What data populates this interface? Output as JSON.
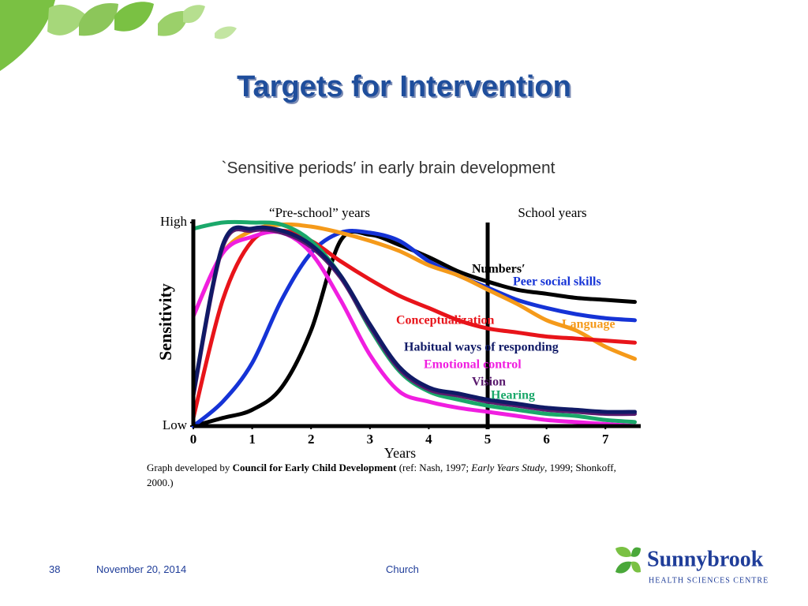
{
  "slide": {
    "title": "Targets for Intervention",
    "page_number": "38",
    "date": "November 20, 2014",
    "footer": "Church",
    "logo_name": "Sunnybrook",
    "logo_subtitle": "HEALTH SCIENCES CENTRE"
  },
  "chart_data": {
    "type": "line",
    "title": "`Sensitive periods′ in early brain development",
    "xlabel": "Years",
    "ylabel": "Sensitivity",
    "annotations": [
      "“Pre-school” years",
      "School years"
    ],
    "caption": [
      "Graph developed by ",
      "Council for Early Child Development",
      " (ref: Nash, 1997; ",
      "Early Years Study",
      ", 1999; Shonkoff, 2000.)"
    ],
    "x": [
      0,
      0.5,
      1,
      1.5,
      2,
      2.5,
      3,
      3.5,
      4,
      4.5,
      5,
      5.5,
      6,
      6.5,
      7,
      7.5
    ],
    "xlim": [
      0,
      7.6
    ],
    "xticks": [
      0,
      1,
      2,
      3,
      4,
      5,
      6,
      7
    ],
    "ylim": [
      0,
      100
    ],
    "yticks": [
      {
        "value": 0,
        "label": "Low"
      },
      {
        "value": 100,
        "label": "High"
      }
    ],
    "grid": false,
    "series": [
      {
        "name": "Numbers′",
        "color": "#000000",
        "values": [
          0,
          4,
          8,
          19,
          47,
          91,
          94,
          89,
          83,
          76,
          71,
          67,
          65,
          63,
          62,
          61
        ]
      },
      {
        "name": "Peer social skills",
        "color": "#1533d6",
        "values": [
          0,
          12,
          31,
          62,
          85,
          95,
          95,
          91,
          81,
          74,
          68,
          62,
          58,
          55,
          53,
          52
        ]
      },
      {
        "name": "Language",
        "color": "#f59a1a",
        "values": [
          54,
          85,
          96,
          99,
          98,
          95,
          91,
          86,
          79,
          74,
          67,
          60,
          52,
          47,
          39,
          33
        ]
      },
      {
        "name": "Conceptualization",
        "color": "#e8141a",
        "values": [
          4,
          62,
          91,
          96,
          91,
          81,
          72,
          64,
          58,
          52,
          48,
          46,
          44,
          43,
          42,
          41
        ]
      },
      {
        "name": "Hearing",
        "color": "#1aa86a",
        "values": [
          97,
          100,
          100,
          99,
          91,
          74,
          48,
          27,
          17,
          13,
          10,
          8,
          6,
          5,
          3,
          2
        ]
      },
      {
        "name": "Emotional control",
        "color": "#f01ee0",
        "values": [
          54,
          85,
          93,
          95,
          85,
          62,
          35,
          17,
          12,
          9,
          7,
          5,
          3,
          2,
          1,
          0
        ]
      },
      {
        "name": "Vision",
        "color": "#5a1a6e",
        "values": [
          15,
          88,
          96,
          95,
          88,
          73,
          49,
          28,
          18,
          15,
          12,
          10,
          8,
          7,
          6,
          6
        ]
      },
      {
        "name": "Habitual ways of responding",
        "color": "#101a66",
        "values": [
          16,
          89,
          97,
          96,
          89,
          74,
          50,
          29,
          19,
          16,
          13,
          11,
          9,
          8,
          7,
          7
        ]
      }
    ]
  }
}
